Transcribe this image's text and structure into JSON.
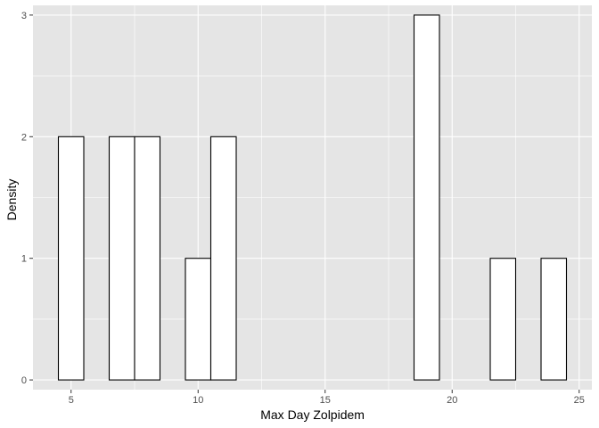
{
  "chart_data": {
    "type": "bar",
    "subtype": "histogram",
    "xlabel": "Max Day Zolpidem",
    "ylabel": "Density",
    "xlim": [
      3.5,
      25.5
    ],
    "ylim": [
      -0.08,
      3.08
    ],
    "xticks": [
      5,
      10,
      15,
      20,
      25
    ],
    "yticks": [
      0,
      1,
      2,
      3
    ],
    "bin_width": 1,
    "bins": [
      {
        "x": 5,
        "value": 2
      },
      {
        "x": 6,
        "value": 0
      },
      {
        "x": 7,
        "value": 2
      },
      {
        "x": 8,
        "value": 2
      },
      {
        "x": 9,
        "value": 0
      },
      {
        "x": 10,
        "value": 1
      },
      {
        "x": 11,
        "value": 2
      },
      {
        "x": 12,
        "value": 0
      },
      {
        "x": 13,
        "value": 0
      },
      {
        "x": 14,
        "value": 0
      },
      {
        "x": 15,
        "value": 0
      },
      {
        "x": 16,
        "value": 0
      },
      {
        "x": 17,
        "value": 0
      },
      {
        "x": 18,
        "value": 0
      },
      {
        "x": 19,
        "value": 3
      },
      {
        "x": 20,
        "value": 0
      },
      {
        "x": 21,
        "value": 0
      },
      {
        "x": 22,
        "value": 1
      },
      {
        "x": 23,
        "value": 0
      },
      {
        "x": 24,
        "value": 1
      }
    ],
    "grid": true,
    "legend": "none",
    "colors": {
      "panel": "#e5e5e5",
      "grid_major": "#ffffff",
      "bar_fill": "#ffffff",
      "bar_stroke": "#000000",
      "tick_text": "#4d4d4d",
      "tick_mark": "#333333"
    }
  }
}
